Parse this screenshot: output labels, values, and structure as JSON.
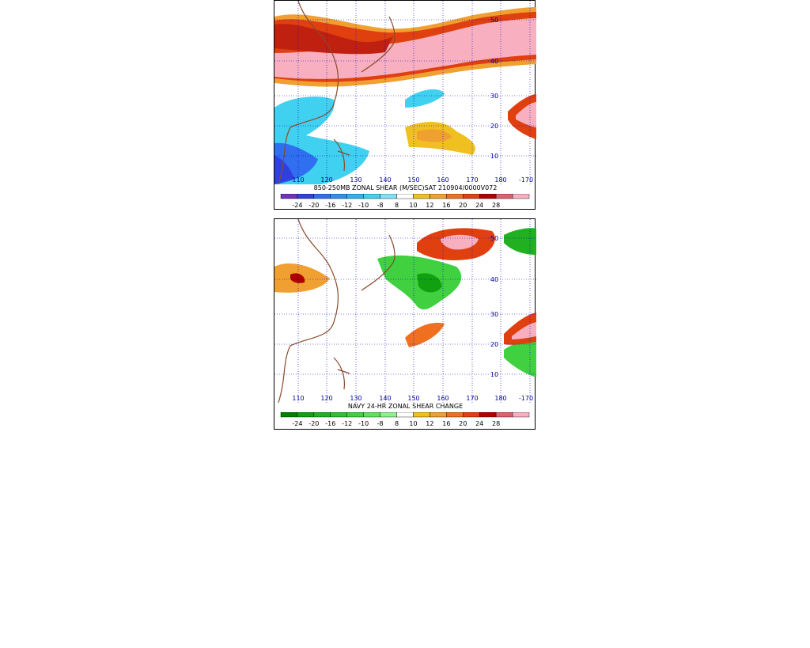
{
  "panels": [
    {
      "id": "shear",
      "caption": "850-250MB ZONAL SHEAR (M/SEC)SAT 210904/0000V072",
      "lon_labels": [
        "110",
        "120",
        "130",
        "140",
        "150",
        "160",
        "170",
        "180",
        "-170"
      ],
      "lat_labels": [
        "50",
        "40",
        "30",
        "20",
        "10"
      ]
    },
    {
      "id": "shear-change",
      "caption": "NAVY 24-HR ZONAL SHEAR CHANGE",
      "lon_labels": [
        "110",
        "120",
        "130",
        "140",
        "150",
        "160",
        "170",
        "180",
        "-170"
      ],
      "lat_labels": [
        "50",
        "40",
        "30",
        "20",
        "10"
      ]
    }
  ],
  "colorbar_top": {
    "labels": [
      "-24",
      "-20",
      "-16",
      "-12",
      "-10",
      "-8",
      "8",
      "10",
      "12",
      "16",
      "20",
      "24",
      "28"
    ],
    "colors": [
      "#7030c0",
      "#3040e0",
      "#3070f0",
      "#3090f0",
      "#30b0f0",
      "#40d0f0",
      "#80e0f8",
      "#ffffff",
      "#f0c020",
      "#f0a030",
      "#f07020",
      "#e04010",
      "#b00000",
      "#e06070",
      "#f8b0c0"
    ]
  },
  "colorbar_bottom": {
    "labels": [
      "-24",
      "-20",
      "-16",
      "-12",
      "-10",
      "-8",
      "8",
      "10",
      "12",
      "16",
      "20",
      "24",
      "28"
    ],
    "colors": [
      "#008000",
      "#10a010",
      "#20b020",
      "#30c030",
      "#40d040",
      "#60e060",
      "#90f090",
      "#ffffff",
      "#f0c020",
      "#f0a030",
      "#f07020",
      "#e04010",
      "#b00000",
      "#e06070",
      "#f8b0c0"
    ]
  }
}
